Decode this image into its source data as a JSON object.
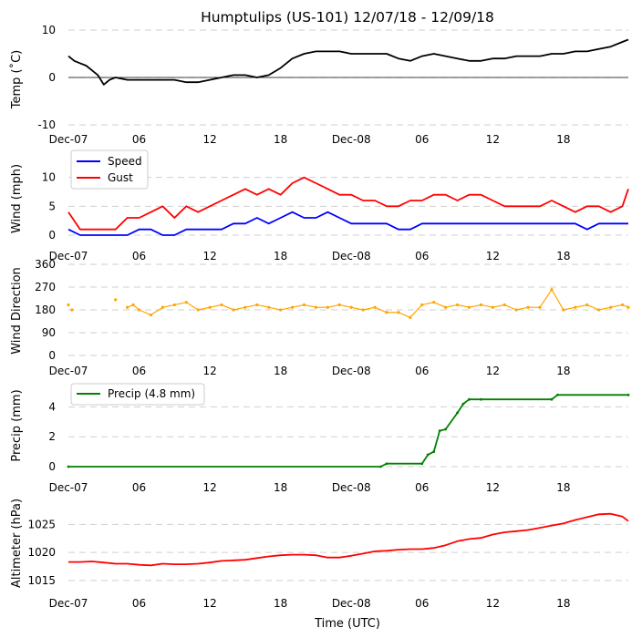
{
  "title": "Humptulips (US-101) 12/07/18 - 12/09/18",
  "x_axis_label": "Time (UTC)",
  "x_tick_labels": [
    "Dec-07",
    "06",
    "12",
    "18",
    "Dec-08",
    "06",
    "12",
    "18"
  ],
  "colors": {
    "temp": "#000000",
    "speed": "#0000ff",
    "gust": "#ff0000",
    "direction": "#ffa500",
    "precip": "#008000",
    "altimeter": "#ff0000",
    "grid": "#cfcfcf"
  },
  "chart_data": [
    {
      "type": "line",
      "id": "temp",
      "ylabel": "Temp ($^\\circ$C)",
      "ylabel_display": "Temp (˚C)",
      "ylim": [
        -10,
        10
      ],
      "yticks": [
        -10,
        0,
        10
      ],
      "zero_line": true,
      "x_unit": "hours since 2018-12-07 00:00 UTC",
      "xlim": [
        0,
        47.5
      ],
      "series": [
        {
          "name": "Temp",
          "color": "#000000",
          "x": [
            0,
            0.5,
            1,
            1.5,
            2,
            2.5,
            3,
            3.5,
            4,
            5,
            6,
            7,
            8,
            9,
            10,
            11,
            12,
            13,
            14,
            15,
            16,
            17,
            18,
            19,
            20,
            21,
            22,
            23,
            24,
            25,
            26,
            27,
            28,
            29,
            30,
            31,
            32,
            33,
            34,
            35,
            36,
            37,
            38,
            39,
            40,
            41,
            42,
            43,
            44,
            45,
            46,
            47,
            47.5
          ],
          "values": [
            4.5,
            3.5,
            3,
            2.5,
            1.5,
            0.5,
            -1.5,
            -0.5,
            0,
            -0.5,
            -0.5,
            -0.5,
            -0.5,
            -0.5,
            -1,
            -1,
            -0.5,
            0,
            0.5,
            0.5,
            0,
            0.5,
            2,
            4,
            5,
            5.5,
            5.5,
            5.5,
            5,
            5,
            5,
            5,
            4,
            3.5,
            4.5,
            5,
            4.5,
            4,
            3.5,
            3.5,
            4,
            4,
            4.5,
            4.5,
            4.5,
            5,
            5,
            5.5,
            5.5,
            6,
            6.5,
            7.5,
            8
          ]
        }
      ]
    },
    {
      "type": "line",
      "id": "wind",
      "ylabel": "Wind (mph)",
      "ylim": [
        0,
        12
      ],
      "yticks": [
        0,
        5,
        10
      ],
      "legend_position": "upper-left",
      "x_unit": "hours since 2018-12-07 00:00 UTC",
      "xlim": [
        0,
        47.5
      ],
      "series": [
        {
          "name": "Speed",
          "color": "#0000ff",
          "x": [
            0,
            1,
            2,
            3,
            4,
            5,
            6,
            7,
            8,
            9,
            10,
            11,
            12,
            13,
            14,
            15,
            16,
            17,
            18,
            19,
            20,
            21,
            22,
            23,
            24,
            25,
            26,
            27,
            28,
            29,
            30,
            31,
            32,
            33,
            34,
            35,
            36,
            37,
            38,
            39,
            40,
            41,
            42,
            43,
            44,
            45,
            46,
            47,
            47.5
          ],
          "values": [
            1,
            0,
            0,
            0,
            0,
            0,
            1,
            1,
            0,
            0,
            1,
            1,
            1,
            1,
            2,
            2,
            3,
            2,
            3,
            4,
            3,
            3,
            4,
            3,
            2,
            2,
            2,
            2,
            1,
            1,
            2,
            2,
            2,
            2,
            2,
            2,
            2,
            2,
            2,
            2,
            2,
            2,
            2,
            2,
            1,
            2,
            2,
            2,
            2
          ]
        },
        {
          "name": "Gust",
          "color": "#ff0000",
          "x": [
            0,
            1,
            2,
            3,
            4,
            5,
            6,
            7,
            8,
            9,
            10,
            11,
            12,
            13,
            14,
            15,
            16,
            17,
            18,
            19,
            20,
            21,
            22,
            23,
            24,
            25,
            26,
            27,
            28,
            29,
            30,
            31,
            32,
            33,
            34,
            35,
            36,
            37,
            38,
            39,
            40,
            41,
            42,
            43,
            44,
            45,
            46,
            47,
            47.5
          ],
          "values": [
            4,
            1,
            1,
            1,
            1,
            3,
            3,
            4,
            5,
            3,
            5,
            4,
            5,
            6,
            7,
            8,
            7,
            8,
            7,
            9,
            10,
            9,
            8,
            7,
            7,
            6,
            6,
            5,
            5,
            6,
            6,
            7,
            7,
            6,
            7,
            7,
            6,
            5,
            5,
            5,
            5,
            6,
            5,
            4,
            5,
            5,
            4,
            5,
            8
          ]
        }
      ]
    },
    {
      "type": "scatter",
      "id": "direction",
      "ylabel": "Wind Direction",
      "ylim": [
        0,
        360
      ],
      "yticks": [
        0,
        90,
        180,
        270,
        360
      ],
      "x_unit": "hours since 2018-12-07 00:00 UTC",
      "xlim": [
        0,
        47.5
      ],
      "series": [
        {
          "name": "Direction",
          "color": "#ffa500",
          "x": [
            0,
            0.3,
            4,
            5,
            5.5,
            6,
            7,
            8,
            9,
            10,
            11,
            12,
            13,
            14,
            15,
            16,
            17,
            18,
            19,
            20,
            21,
            22,
            23,
            24,
            25,
            26,
            27,
            28,
            29,
            30,
            31,
            32,
            33,
            34,
            35,
            36,
            37,
            38,
            39,
            40,
            41,
            42,
            43,
            44,
            45,
            46,
            47,
            47.5
          ],
          "values": [
            200,
            180,
            220,
            190,
            200,
            180,
            160,
            190,
            200,
            210,
            180,
            190,
            200,
            180,
            190,
            200,
            190,
            180,
            190,
            200,
            190,
            190,
            200,
            190,
            180,
            190,
            170,
            170,
            150,
            200,
            210,
            190,
            200,
            190,
            200,
            190,
            200,
            180,
            190,
            190,
            260,
            180,
            190,
            200,
            180,
            190,
            200,
            190
          ]
        }
      ]
    },
    {
      "type": "line",
      "id": "precip",
      "ylabel": "Precip (mm)",
      "ylim": [
        0,
        5
      ],
      "yticks": [
        0,
        2,
        4
      ],
      "legend_position": "upper-left",
      "x_unit": "hours since 2018-12-07 00:00 UTC",
      "xlim": [
        0,
        47.5
      ],
      "series": [
        {
          "name": "Precip (4.8 mm)",
          "color": "#008000",
          "x": [
            0,
            26.5,
            27,
            30,
            30.5,
            31,
            31.5,
            32,
            33,
            33.5,
            34,
            35,
            41,
            41.5,
            47.5
          ],
          "values": [
            0,
            0,
            0.2,
            0.2,
            0.8,
            1,
            2.4,
            2.5,
            3.6,
            4.2,
            4.5,
            4.5,
            4.5,
            4.8,
            4.8
          ]
        }
      ]
    },
    {
      "type": "line",
      "id": "altimeter",
      "ylabel": "Altimeter (hPa)",
      "ylim": [
        1014.5,
        1027.5
      ],
      "yticks": [
        1015,
        1020,
        1025
      ],
      "x_unit": "hours since 2018-12-07 00:00 UTC",
      "xlim": [
        0,
        47.5
      ],
      "series": [
        {
          "name": "Altimeter",
          "color": "#ff0000",
          "x": [
            0,
            1,
            2,
            3,
            4,
            5,
            6,
            7,
            8,
            9,
            10,
            11,
            12,
            13,
            14,
            15,
            16,
            17,
            18,
            19,
            20,
            21,
            22,
            23,
            24,
            25,
            26,
            27,
            28,
            29,
            30,
            31,
            32,
            33,
            34,
            35,
            36,
            37,
            38,
            39,
            40,
            41,
            42,
            43,
            44,
            45,
            46,
            47,
            47.5
          ],
          "values": [
            1018.3,
            1018.3,
            1018.4,
            1018.2,
            1018,
            1018,
            1017.8,
            1017.7,
            1018,
            1017.9,
            1017.9,
            1018,
            1018.2,
            1018.5,
            1018.6,
            1018.7,
            1019,
            1019.3,
            1019.5,
            1019.6,
            1019.6,
            1019.5,
            1019.1,
            1019.1,
            1019.4,
            1019.8,
            1020.2,
            1020.3,
            1020.5,
            1020.6,
            1020.6,
            1020.8,
            1021.3,
            1022,
            1022.4,
            1022.6,
            1023.2,
            1023.6,
            1023.8,
            1024,
            1024.4,
            1024.8,
            1025.2,
            1025.8,
            1026.3,
            1026.8,
            1026.9,
            1026.4,
            1025.6
          ]
        }
      ]
    }
  ]
}
